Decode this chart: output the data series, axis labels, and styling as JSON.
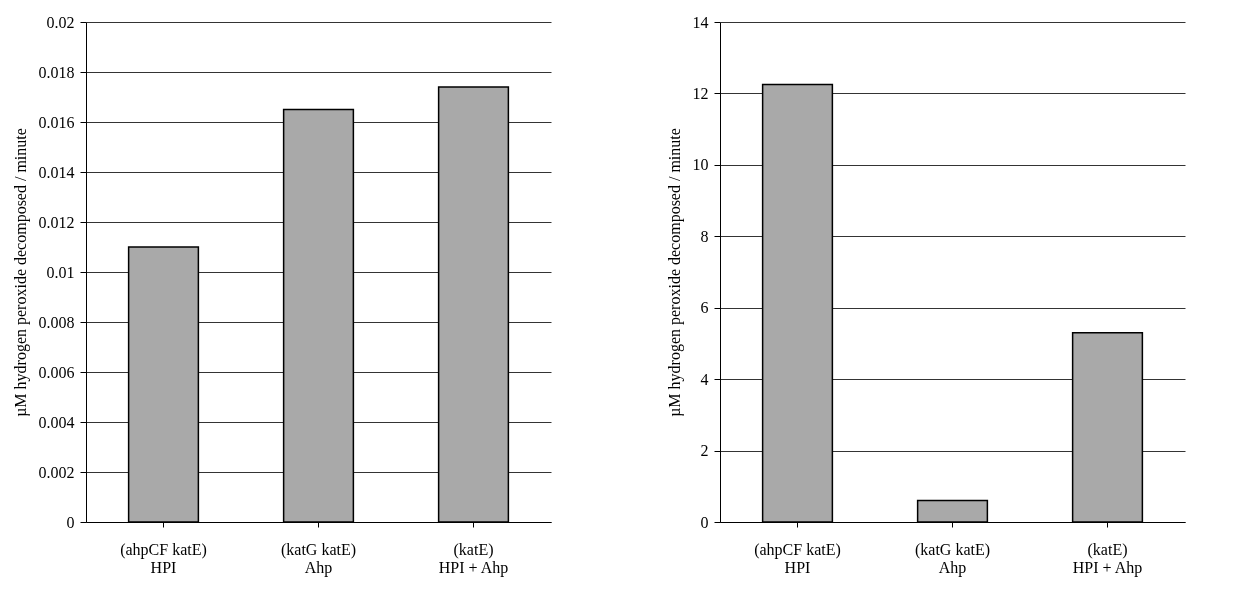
{
  "chart_data": [
    {
      "type": "bar",
      "ylabel": "µM hydrogen peroxide decomposed / minute",
      "categories": [
        "(ahpCF katE)\nHPI",
        "(katG katE)\nAhp",
        "(katE)\nHPI + Ahp"
      ],
      "values": [
        0.011,
        0.0165,
        0.0174
      ],
      "color": "#a9a9a9",
      "ylim": [
        0,
        0.02
      ],
      "yticks": [
        0,
        0.002,
        0.004,
        0.006,
        0.008,
        0.01,
        0.012,
        0.014,
        0.016,
        0.018,
        0.02
      ],
      "grid": "y"
    },
    {
      "type": "bar",
      "ylabel": "µM hydrogen peroxide decomposed / minute",
      "categories": [
        "(ahpCF katE)\nHPI",
        "(katG katE)\nAhp",
        "(katE)\nHPI + Ahp"
      ],
      "values": [
        12.25,
        0.6,
        5.3
      ],
      "color": "#a9a9a9",
      "ylim": [
        0,
        14
      ],
      "yticks": [
        0,
        2,
        4,
        6,
        8,
        10,
        12,
        14
      ],
      "grid": "y"
    }
  ]
}
